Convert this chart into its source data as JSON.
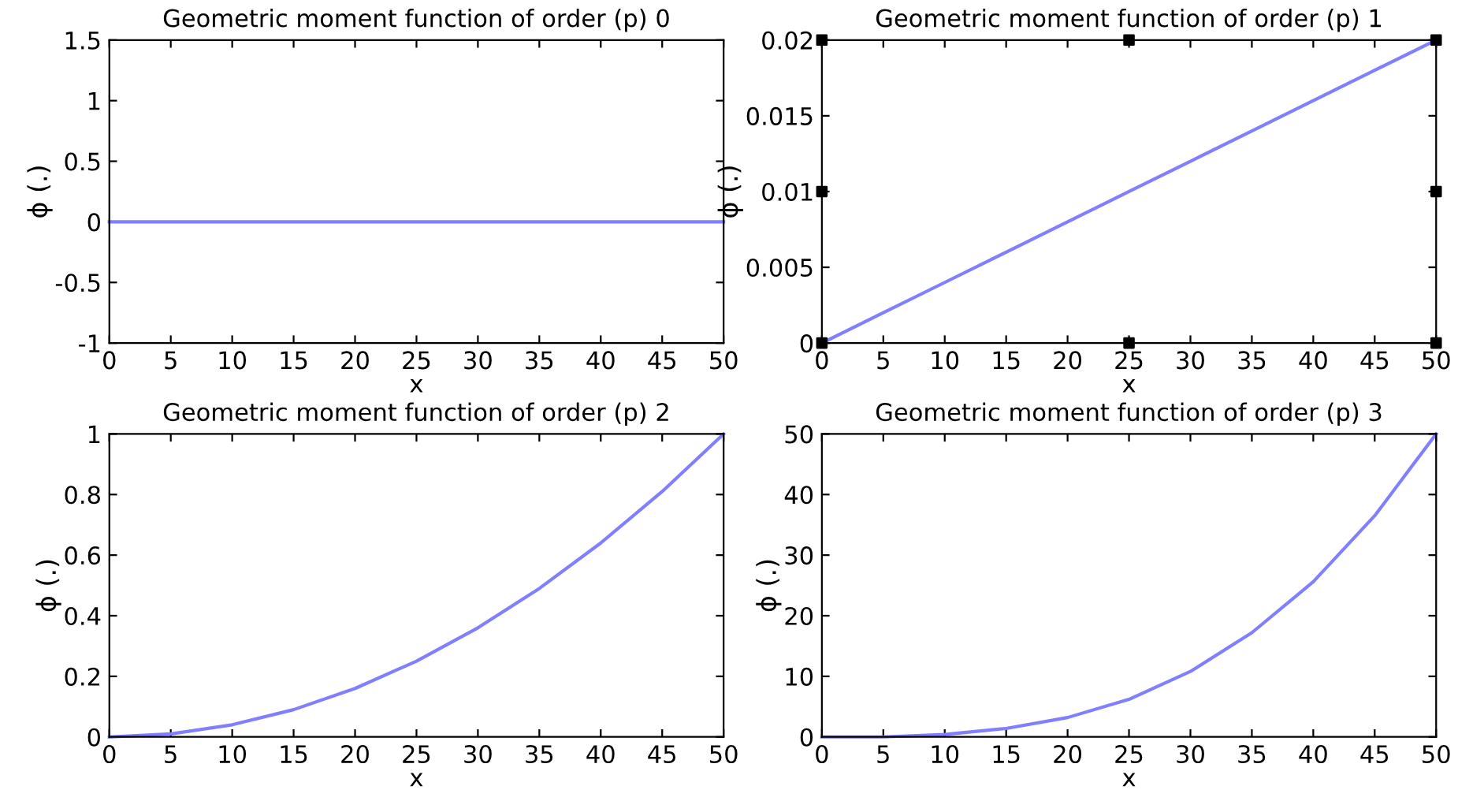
{
  "chart_data": [
    {
      "type": "line",
      "title": "Geometric moment function of order (p) 0",
      "xlabel": "x",
      "ylabel": "ϕ (.)",
      "x": [
        0,
        5,
        10,
        15,
        20,
        25,
        30,
        35,
        40,
        45,
        50
      ],
      "series": [
        {
          "color": "#7f7fff",
          "values": [
            0,
            0,
            0,
            0,
            0,
            0,
            0,
            0,
            0,
            0,
            0
          ]
        }
      ],
      "xlim": [
        0,
        50
      ],
      "xticks": [
        0,
        5,
        10,
        15,
        20,
        25,
        30,
        35,
        40,
        45,
        50
      ],
      "ylim": [
        -1,
        1.5
      ],
      "yticks": [
        -1,
        -0.5,
        0,
        0.5,
        1,
        1.5
      ],
      "grid": false,
      "legend": false,
      "marker": "none",
      "line_style": "solid"
    },
    {
      "type": "line",
      "title": "Geometric moment function of order (p) 1",
      "xlabel": "x",
      "ylabel": "ϕ (.)",
      "x": [
        0,
        5,
        10,
        15,
        20,
        25,
        30,
        35,
        40,
        45,
        50
      ],
      "series": [
        {
          "color": "#7f7fff",
          "values": [
            0,
            0.002,
            0.004,
            0.006,
            0.008,
            0.01,
            0.012,
            0.014,
            0.016,
            0.018,
            0.02
          ]
        },
        {
          "type": "scatter",
          "color": "#000000",
          "marker": "square",
          "x": [
            0,
            0,
            0,
            25,
            25,
            50,
            50,
            50
          ],
          "values": [
            0,
            0.01,
            0.02,
            0,
            0.02,
            0,
            0.01,
            0.02
          ]
        }
      ],
      "xlim": [
        0,
        50
      ],
      "xticks": [
        0,
        5,
        10,
        15,
        20,
        25,
        30,
        35,
        40,
        45,
        50
      ],
      "ylim": [
        0,
        0.02
      ],
      "yticks": [
        0,
        0.005,
        0.01,
        0.015,
        0.02
      ],
      "grid": false,
      "legend": false,
      "marker": "none",
      "line_style": "solid"
    },
    {
      "type": "line",
      "title": "Geometric moment function of order (p) 2",
      "xlabel": "x",
      "ylabel": "ϕ (.)",
      "x": [
        0,
        5,
        10,
        15,
        20,
        25,
        30,
        35,
        40,
        45,
        50
      ],
      "series": [
        {
          "color": "#7f7fff",
          "values": [
            0,
            0.01,
            0.04,
            0.09,
            0.16,
            0.25,
            0.36,
            0.49,
            0.64,
            0.81,
            1.0
          ]
        }
      ],
      "xlim": [
        0,
        50
      ],
      "xticks": [
        0,
        5,
        10,
        15,
        20,
        25,
        30,
        35,
        40,
        45,
        50
      ],
      "ylim": [
        0,
        1
      ],
      "yticks": [
        0,
        0.2,
        0.4,
        0.6,
        0.8,
        1
      ],
      "grid": false,
      "legend": false,
      "marker": "none",
      "line_style": "solid"
    },
    {
      "type": "line",
      "title": "Geometric moment function of order (p) 3",
      "xlabel": "x",
      "ylabel": "ϕ (.)",
      "x": [
        0,
        5,
        10,
        15,
        20,
        25,
        30,
        35,
        40,
        45,
        50
      ],
      "series": [
        {
          "color": "#7f7fff",
          "values": [
            0,
            0,
            0.4,
            1.4,
            3.2,
            6.2,
            10.8,
            17.2,
            25.6,
            36.5,
            50
          ]
        }
      ],
      "xlim": [
        0,
        50
      ],
      "xticks": [
        0,
        5,
        10,
        15,
        20,
        25,
        30,
        35,
        40,
        45,
        50
      ],
      "ylim": [
        0,
        50
      ],
      "yticks": [
        0,
        10,
        20,
        30,
        40,
        50
      ],
      "grid": false,
      "legend": false,
      "marker": "none",
      "line_style": "solid"
    }
  ]
}
